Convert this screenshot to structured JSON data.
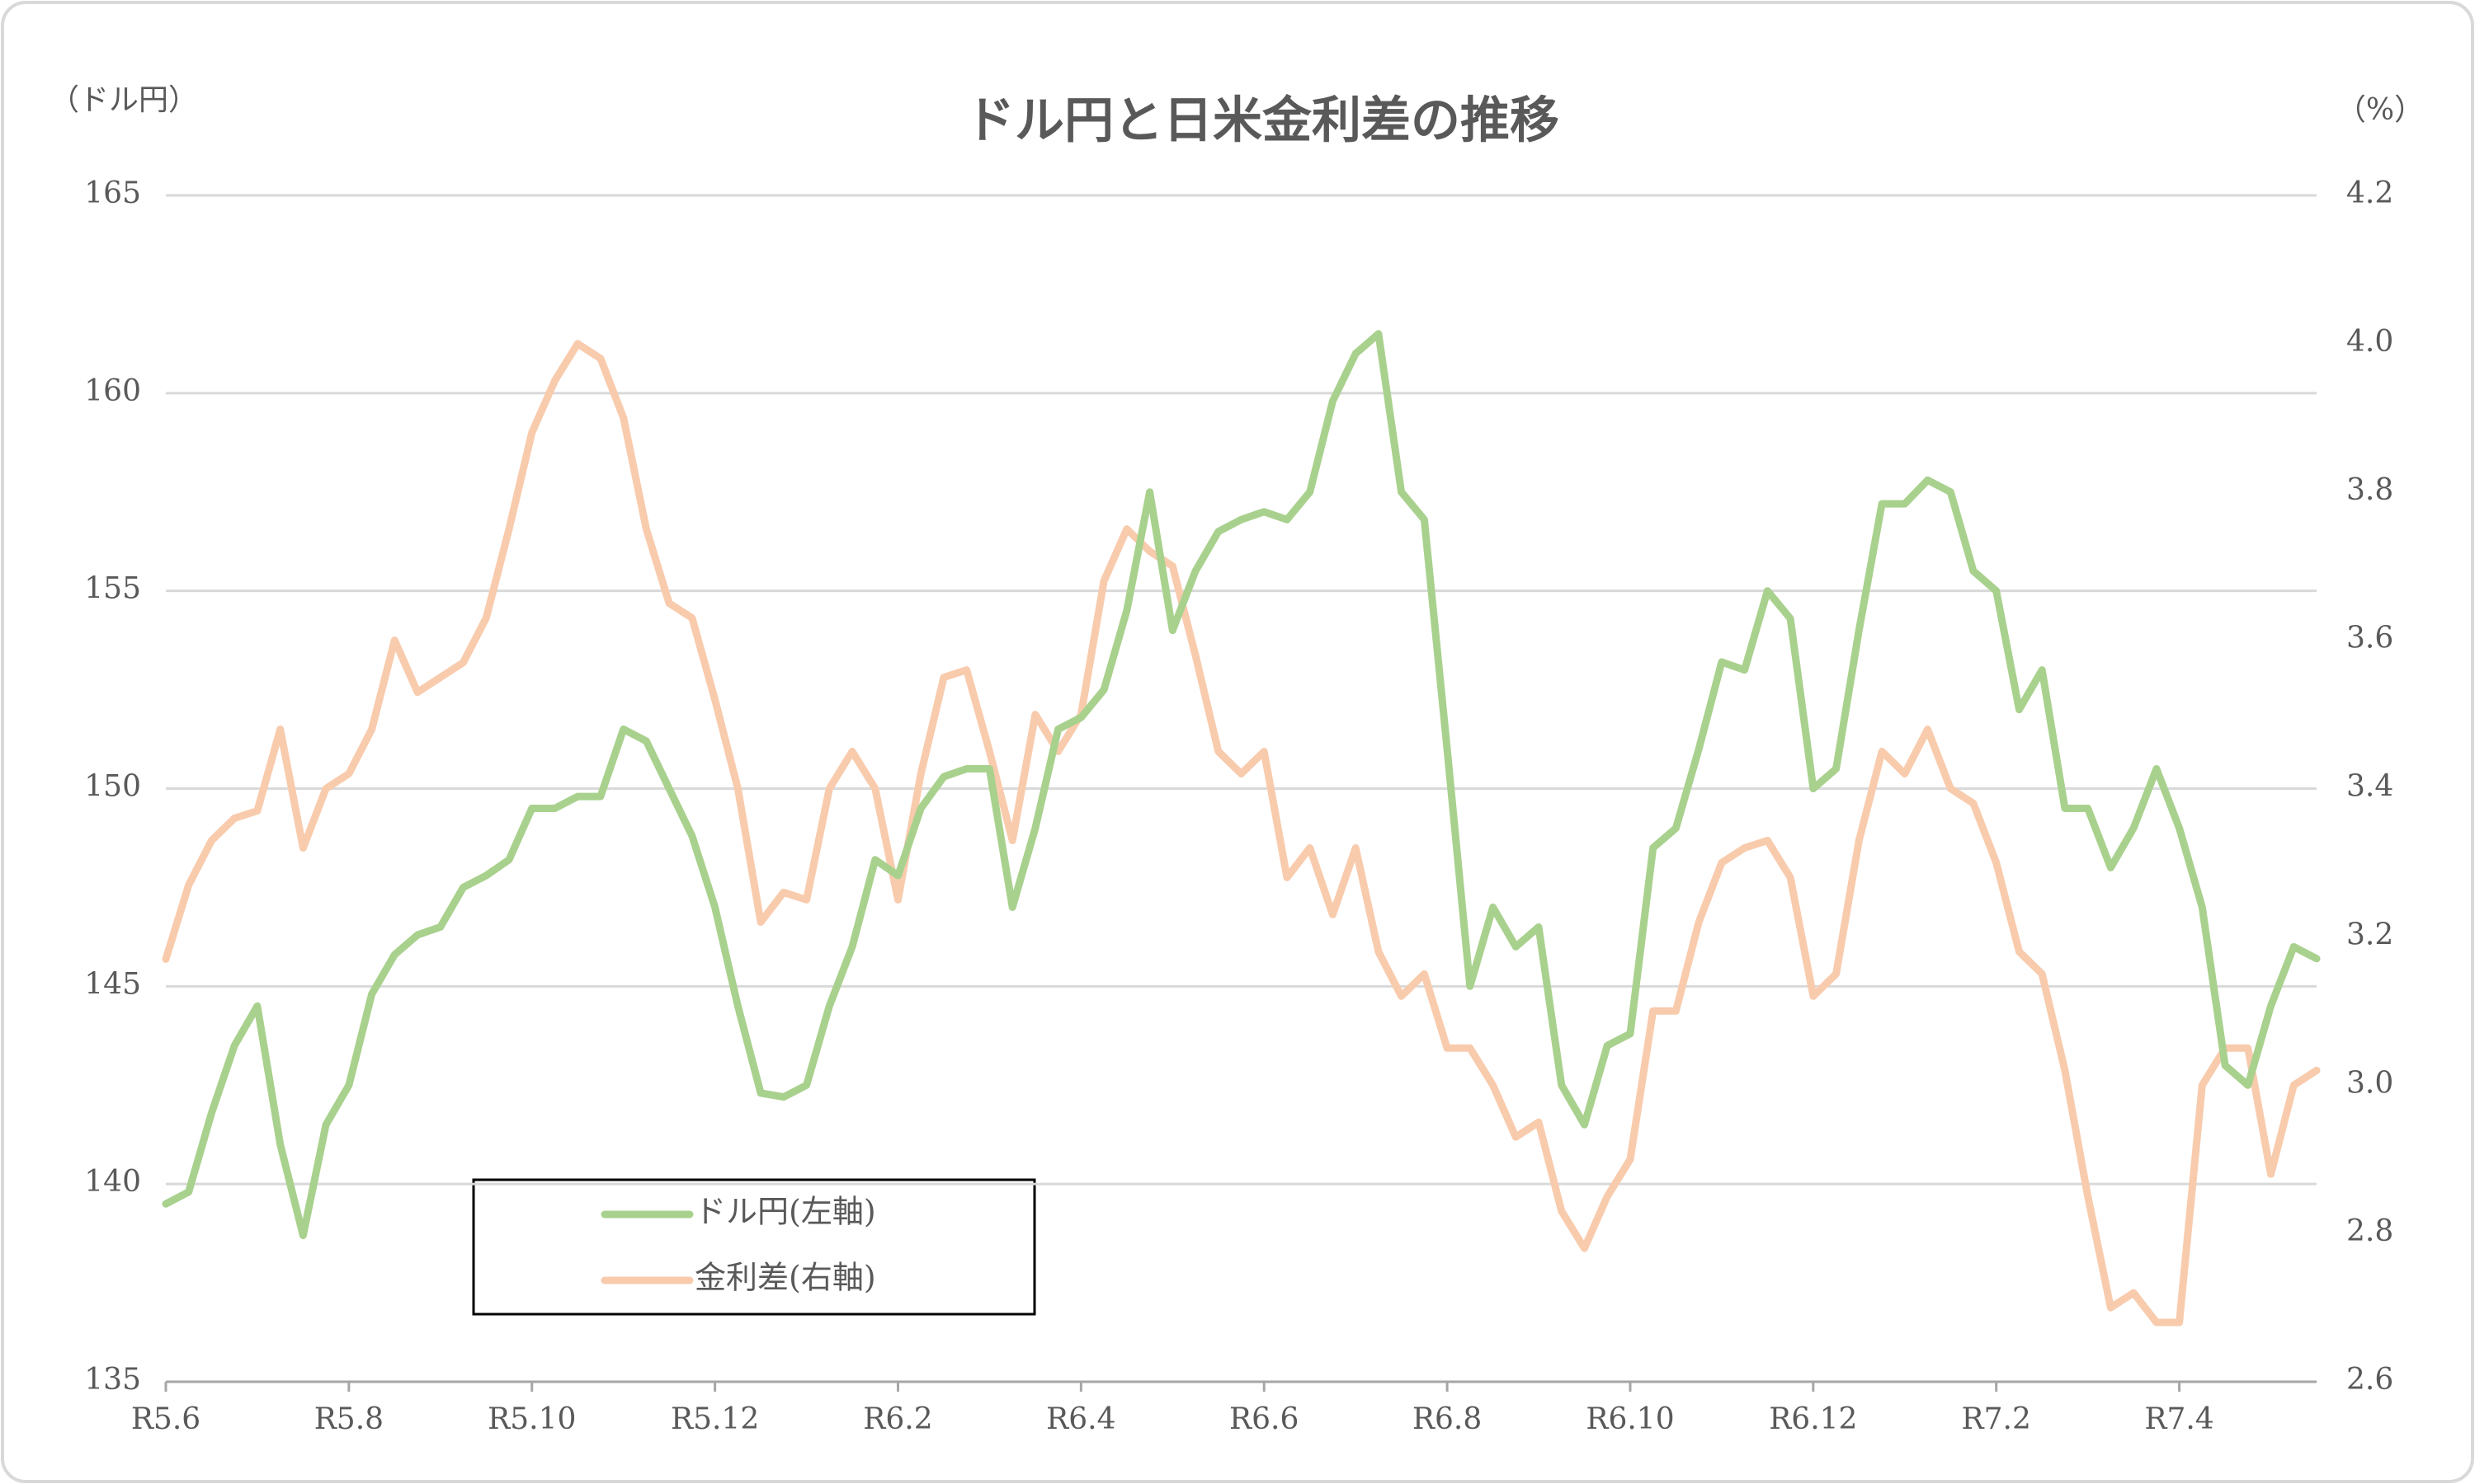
{
  "chart_data": {
    "type": "line",
    "title": "ドル円と日米金利差の推移",
    "y_label": "（ドル円）",
    "y2_label": "（%）",
    "categories": [
      "R5.6",
      null,
      null,
      null,
      null,
      null,
      null,
      null,
      "R5.8",
      null,
      null,
      null,
      null,
      null,
      null,
      null,
      "R5.10",
      null,
      null,
      null,
      null,
      null,
      null,
      null,
      "R5.12",
      null,
      null,
      null,
      null,
      null,
      null,
      null,
      "R6.2",
      null,
      null,
      null,
      null,
      null,
      null,
      null,
      "R6.4",
      null,
      null,
      null,
      null,
      null,
      null,
      null,
      "R6.6",
      null,
      null,
      null,
      null,
      null,
      null,
      null,
      "R6.8",
      null,
      null,
      null,
      null,
      null,
      null,
      null,
      "R6.10",
      null,
      null,
      null,
      null,
      null,
      null,
      null,
      "R6.12",
      null,
      null,
      null,
      null,
      null,
      null,
      null,
      "R7.2",
      null,
      null,
      null,
      null,
      null,
      null,
      null,
      "R7.4",
      null,
      null,
      null,
      null,
      null,
      null
    ],
    "series": [
      {
        "name": "ドル円(左軸)",
        "color": "#a9d18e",
        "values": [
          139.5,
          139.8,
          141.8,
          143.5,
          144.5,
          141,
          138.7,
          141.5,
          142.5,
          144.8,
          145.8,
          146.3,
          146.5,
          147.5,
          147.8,
          148.2,
          149.5,
          149.5,
          149.8,
          149.8,
          151.5,
          151.2,
          150,
          148.8,
          147,
          144.5,
          142.3,
          142.2,
          142.5,
          144.5,
          146,
          148.2,
          147.8,
          149.5,
          150.3,
          150.5,
          150.5,
          147,
          149,
          151.5,
          151.8,
          152.5,
          154.5,
          157.5,
          154,
          155.5,
          156.5,
          156.8,
          157,
          156.8,
          157.5,
          159.8,
          161,
          161.5,
          157.5,
          156.8,
          151,
          145,
          147,
          146,
          146.5,
          142.5,
          141.5,
          143.5,
          143.8,
          148.5,
          149,
          151,
          153.2,
          153,
          155,
          154.3,
          150,
          150.5,
          154,
          157.2,
          157.2,
          157.8,
          157.5,
          155.5,
          155,
          152,
          153,
          149.5,
          149.5,
          148,
          149,
          150.5,
          149,
          147,
          143,
          142.5,
          144.5,
          146,
          145.7
        ]
      },
      {
        "name": "金利差(右軸)",
        "color": "#f8cbad",
        "axis": "y2",
        "values": [
          3.17,
          3.27,
          3.33,
          3.36,
          3.37,
          3.48,
          3.32,
          3.4,
          3.42,
          3.48,
          3.6,
          3.53,
          3.55,
          3.57,
          3.63,
          3.75,
          3.88,
          3.95,
          4.0,
          3.98,
          3.9,
          3.75,
          3.65,
          3.63,
          3.52,
          3.4,
          3.22,
          3.26,
          3.25,
          3.4,
          3.45,
          3.4,
          3.25,
          3.42,
          3.55,
          3.56,
          3.45,
          3.33,
          3.5,
          3.45,
          3.5,
          3.68,
          3.75,
          3.72,
          3.7,
          3.58,
          3.45,
          3.42,
          3.45,
          3.28,
          3.32,
          3.23,
          3.32,
          3.18,
          3.12,
          3.15,
          3.05,
          3.05,
          3.0,
          2.93,
          2.95,
          2.83,
          2.78,
          2.85,
          2.9,
          3.1,
          3.1,
          3.22,
          3.3,
          3.32,
          3.33,
          3.28,
          3.12,
          3.15,
          3.33,
          3.45,
          3.42,
          3.48,
          3.4,
          3.38,
          3.3,
          3.18,
          3.15,
          3.02,
          2.85,
          2.7,
          2.72,
          2.68,
          2.68,
          3.0,
          3.05,
          3.05,
          2.88,
          3.0,
          3.02
        ]
      }
    ],
    "ylim": [
      135,
      165
    ],
    "yticks": [
      135,
      140,
      145,
      150,
      155,
      160,
      165
    ],
    "y2lim": [
      2.6,
      4.2
    ],
    "y2ticks": [
      {
        "value": 2.6,
        "label": "2.6"
      },
      {
        "value": 2.8,
        "label": "2.8"
      },
      {
        "value": 3,
        "label": "3.0"
      },
      {
        "value": 3.2,
        "label": "3.2"
      },
      {
        "value": 3.4,
        "label": "3.4"
      },
      {
        "value": 3.6,
        "label": "3.6"
      },
      {
        "value": 3.8,
        "label": "3.8"
      },
      {
        "value": 4,
        "label": "4.0"
      },
      {
        "value": 4.2,
        "label": "4.2"
      }
    ],
    "grid": true
  }
}
